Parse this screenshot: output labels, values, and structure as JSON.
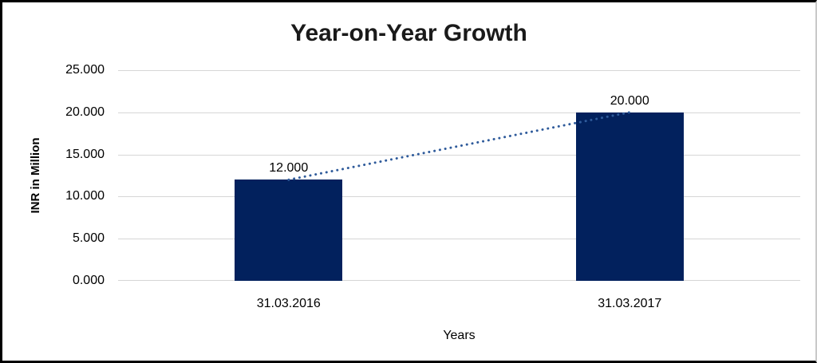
{
  "chart_data": {
    "type": "bar",
    "title": "Year-on-Year Growth",
    "xlabel": "Years",
    "ylabel": "INR in Million",
    "categories": [
      "31.03.2016",
      "31.03.2017"
    ],
    "values": [
      12,
      20
    ],
    "data_labels": [
      "12.000",
      "20.000"
    ],
    "ytick_labels": [
      "25.000",
      "20.000",
      "15.000",
      "10.000",
      "5.000",
      "0.000"
    ],
    "ylim": [
      0,
      25
    ],
    "grid": "horizontal",
    "legend": "none",
    "trendline": {
      "style": "dotted",
      "color": "#2F5B9B",
      "connects": [
        "31.03.2016",
        "31.03.2017"
      ]
    },
    "colors": {
      "bar": "#02215D",
      "gridline": "#D6D6D6",
      "trendline": "#2F5B9B",
      "text": "#000000",
      "title": "#1A1A1A"
    }
  }
}
